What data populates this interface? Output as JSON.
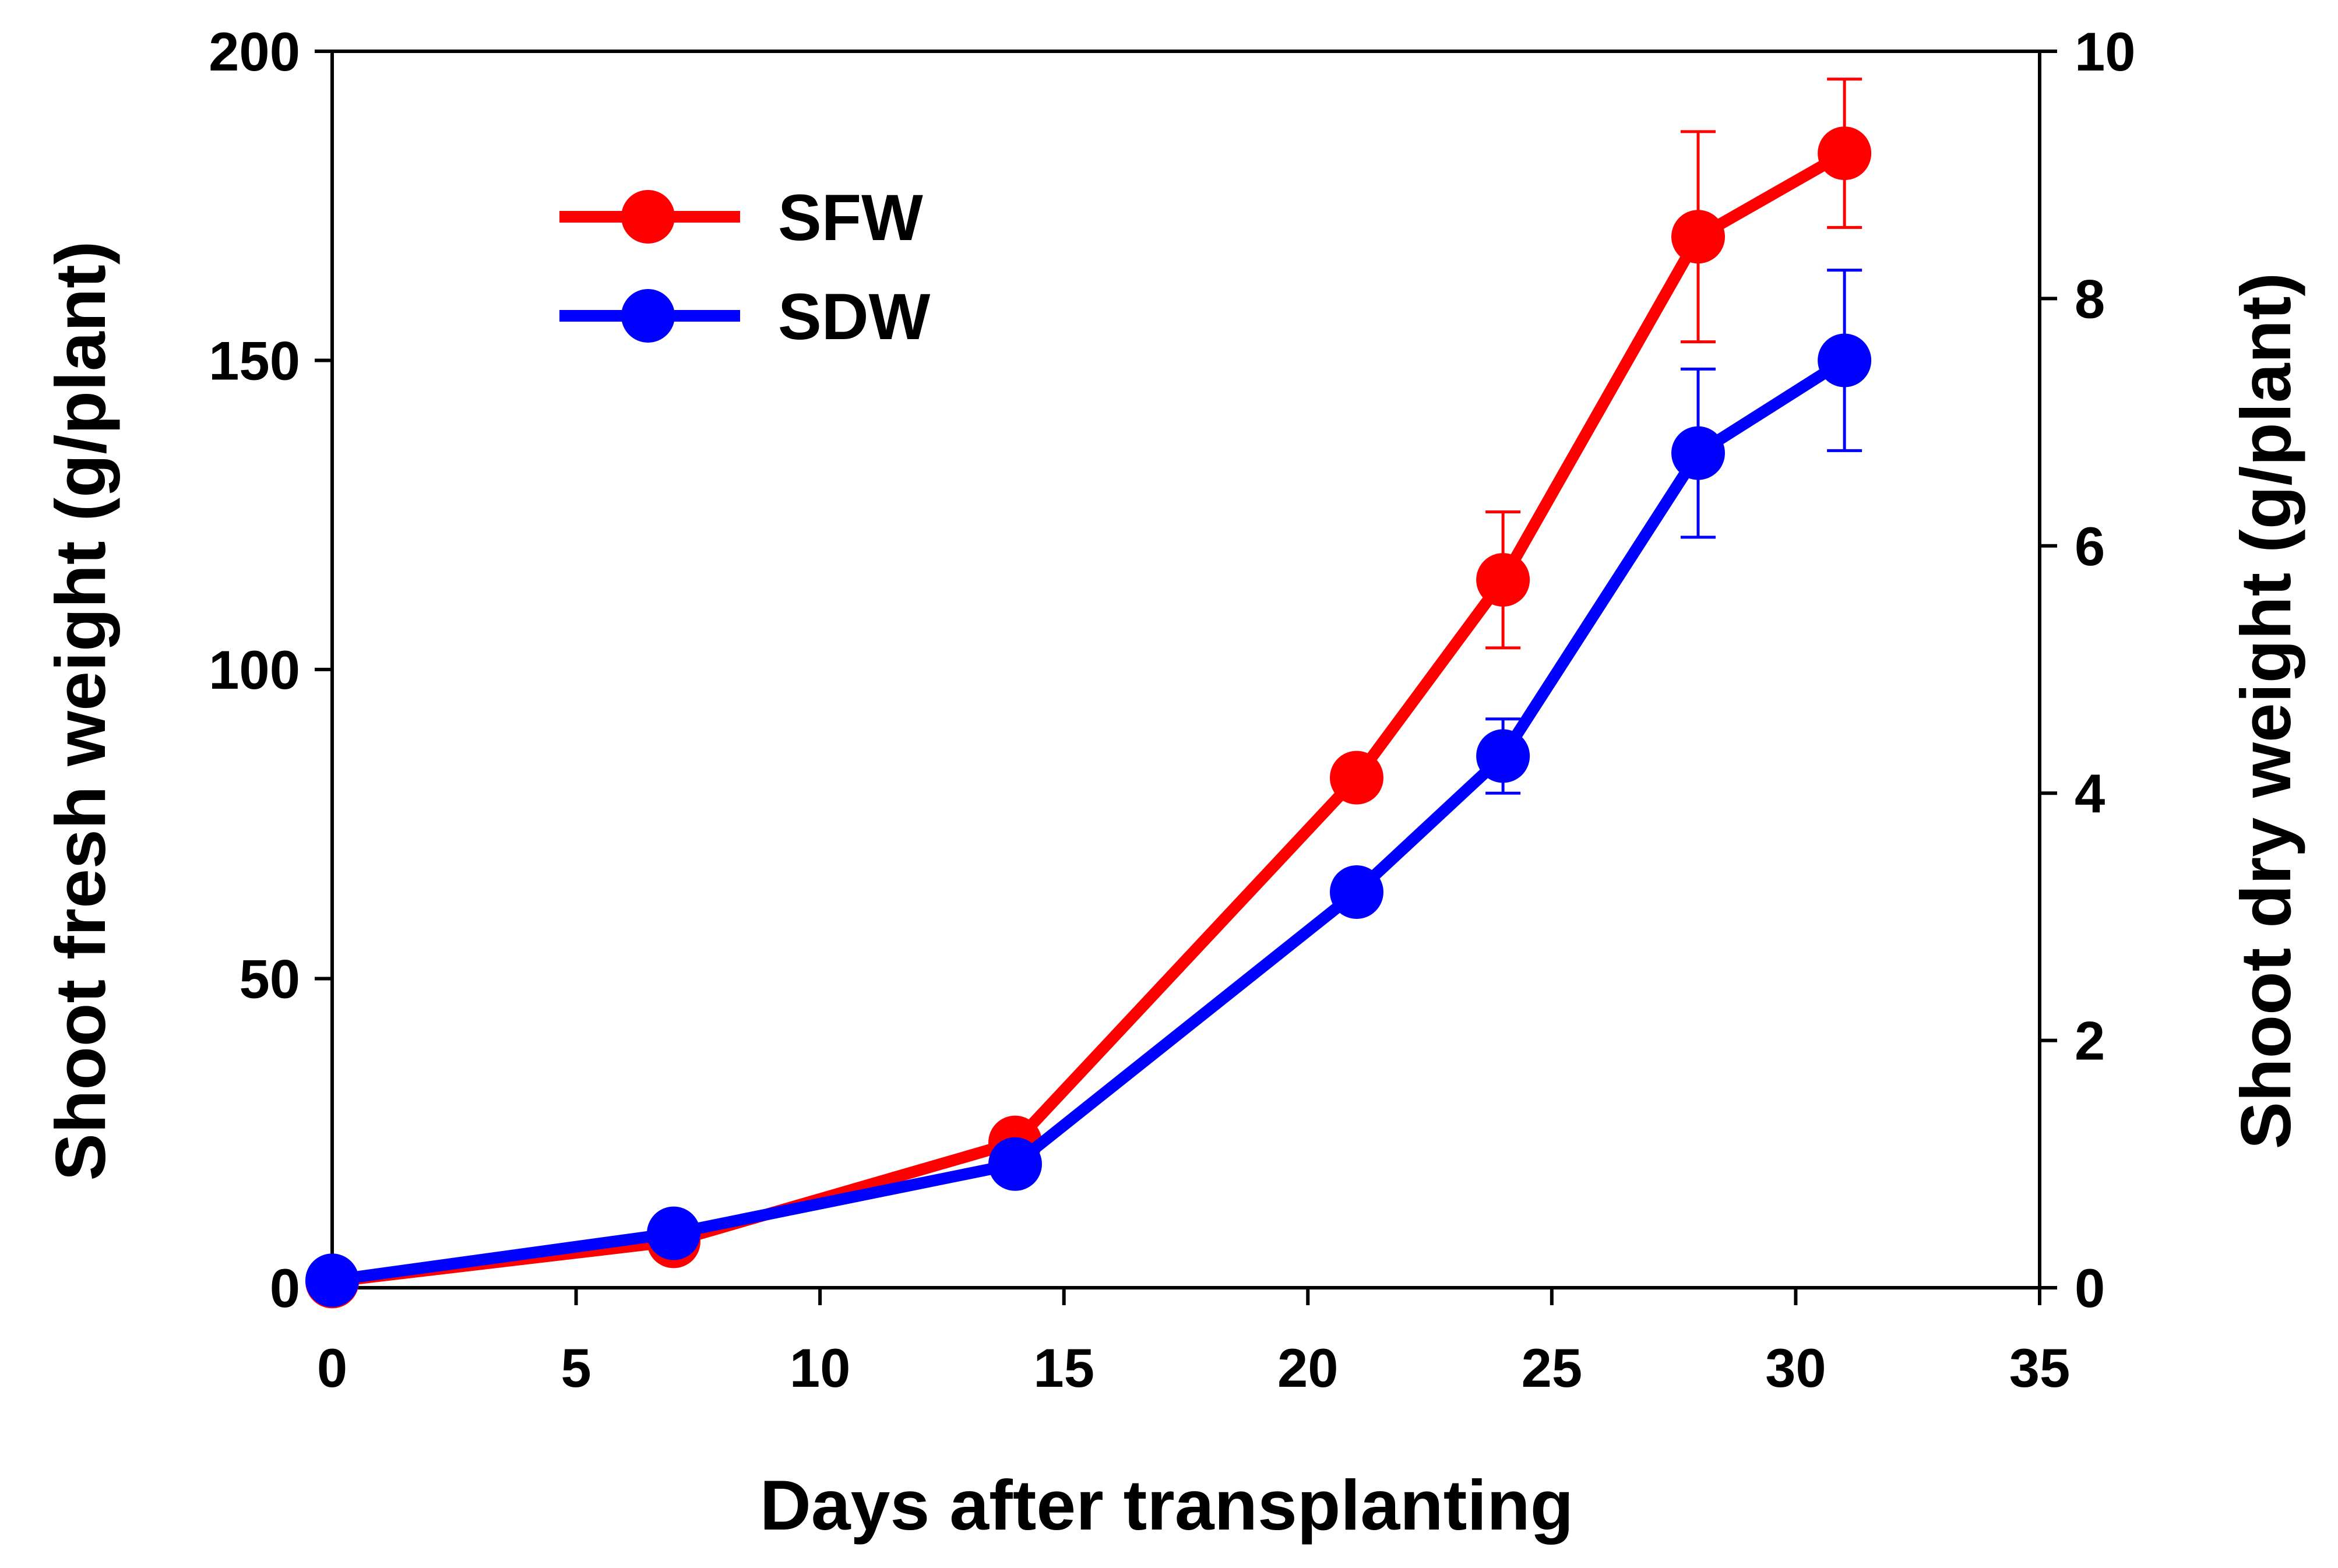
{
  "chart_data": {
    "type": "line",
    "xlabel": "Days after transplanting",
    "ylabel_left": "Shoot fresh weight (g/plant)",
    "ylabel_right": "Shoot dry weight (g/plant)",
    "xlim": [
      0,
      35
    ],
    "ylim_left": [
      0,
      200
    ],
    "ylim_right": [
      0,
      10
    ],
    "xticks": [
      "0",
      "5",
      "10",
      "15",
      "20",
      "25",
      "30",
      "35"
    ],
    "yticks_left": [
      "0",
      "50",
      "100",
      "150",
      "200"
    ],
    "yticks_right": [
      "0",
      "2",
      "4",
      "6",
      "8",
      "10"
    ],
    "grid": false,
    "legend_position": "top-left",
    "x": [
      0,
      7,
      14,
      21,
      24,
      28,
      31
    ],
    "series": [
      {
        "name": "SFW",
        "axis": "left",
        "color": "#ff0000",
        "values": [
          1,
          7.5,
          23.5,
          82.5,
          114.5,
          170,
          183.5
        ],
        "errors": [
          0,
          0,
          0,
          0,
          11,
          17,
          12
        ]
      },
      {
        "name": "SDW",
        "axis": "right",
        "color": "#0000ff",
        "values": [
          0.06,
          0.44,
          1.0,
          3.2,
          4.3,
          6.75,
          7.5
        ],
        "errors": [
          0,
          0,
          0,
          0,
          0.3,
          0.68,
          0.73
        ]
      }
    ]
  }
}
